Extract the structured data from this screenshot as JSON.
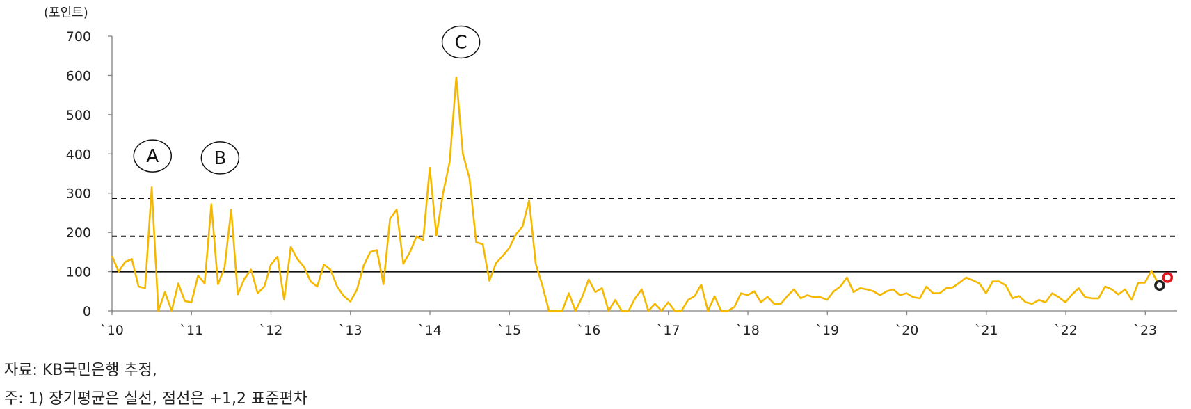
{
  "chart_data": {
    "type": "line",
    "unit_label": "(포인트)",
    "y_ticks": [
      "0",
      "100",
      "200",
      "300",
      "400",
      "500",
      "600",
      "700"
    ],
    "y_values": [
      0,
      100,
      200,
      300,
      400,
      500,
      600,
      700
    ],
    "ylim": [
      0,
      700
    ],
    "xlim": [
      2010,
      2023.4
    ],
    "x_ticks": [
      "`10",
      "`11",
      "`12",
      "`13",
      "`14",
      "`15",
      "`16",
      "`17",
      "`18",
      "`19",
      "`20",
      "`21",
      "`22",
      "`23"
    ],
    "x_tick_years": [
      2010,
      2011,
      2012,
      2013,
      2014,
      2015,
      2016,
      2017,
      2018,
      2019,
      2020,
      2021,
      2022,
      2023
    ],
    "reference_lines": [
      {
        "name": "장기평균",
        "value": 100,
        "style": "solid"
      },
      {
        "name": "+1 표준편차",
        "value": 190,
        "style": "dashed"
      },
      {
        "name": "+2 표준편차",
        "value": 287,
        "style": "dashed"
      }
    ],
    "series": [
      {
        "name": "포인트",
        "color": "#F5B800",
        "x_start": 2010.0,
        "x_step": 0.0833,
        "values": [
          140,
          100,
          125,
          132,
          62,
          58,
          315,
          0,
          48,
          0,
          70,
          25,
          22,
          90,
          70,
          272,
          68,
          110,
          258,
          42,
          82,
          105,
          45,
          62,
          118,
          138,
          28,
          163,
          132,
          112,
          75,
          62,
          118,
          105,
          62,
          38,
          24,
          54,
          115,
          150,
          155,
          68,
          235,
          258,
          120,
          150,
          190,
          180,
          365,
          192,
          300,
          380,
          595,
          400,
          338,
          175,
          170,
          77,
          122,
          140,
          160,
          195,
          215,
          282,
          120,
          65,
          0,
          0,
          0,
          45,
          0,
          35,
          80,
          48,
          58,
          0,
          28,
          0,
          0,
          32,
          55,
          0,
          18,
          0,
          22,
          0,
          0,
          28,
          38,
          67,
          0,
          37,
          0,
          0,
          10,
          45,
          40,
          50,
          22,
          36,
          18,
          18,
          38,
          55,
          32,
          40,
          35,
          35,
          28,
          50,
          62,
          85,
          48,
          58,
          55,
          50,
          40,
          50,
          55,
          40,
          45,
          35,
          32,
          62,
          45,
          45,
          58,
          60,
          72,
          85,
          78,
          70,
          45,
          75,
          75,
          65,
          32,
          38,
          22,
          18,
          28,
          22,
          45,
          35,
          22,
          42,
          58,
          35,
          32,
          32,
          62,
          55,
          42,
          55,
          28,
          72,
          72,
          102,
          70
        ]
      }
    ],
    "markers": [
      {
        "name": "current-black",
        "x": 2023.18,
        "y": 65,
        "color": "#222222"
      },
      {
        "name": "current-red",
        "x": 2023.28,
        "y": 85,
        "color": "#E8141C"
      }
    ],
    "annotations": [
      {
        "label": "A",
        "x": 2010.51,
        "y": 395
      },
      {
        "label": "B",
        "x": 2011.36,
        "y": 390
      },
      {
        "label": "C",
        "x": 2014.39,
        "y": 685
      }
    ]
  },
  "notes": {
    "source": "자료: KB국민은행 추정,",
    "footnote": "주: 1) 장기평균은 실선, 점선은 +1,2 표준편차"
  }
}
